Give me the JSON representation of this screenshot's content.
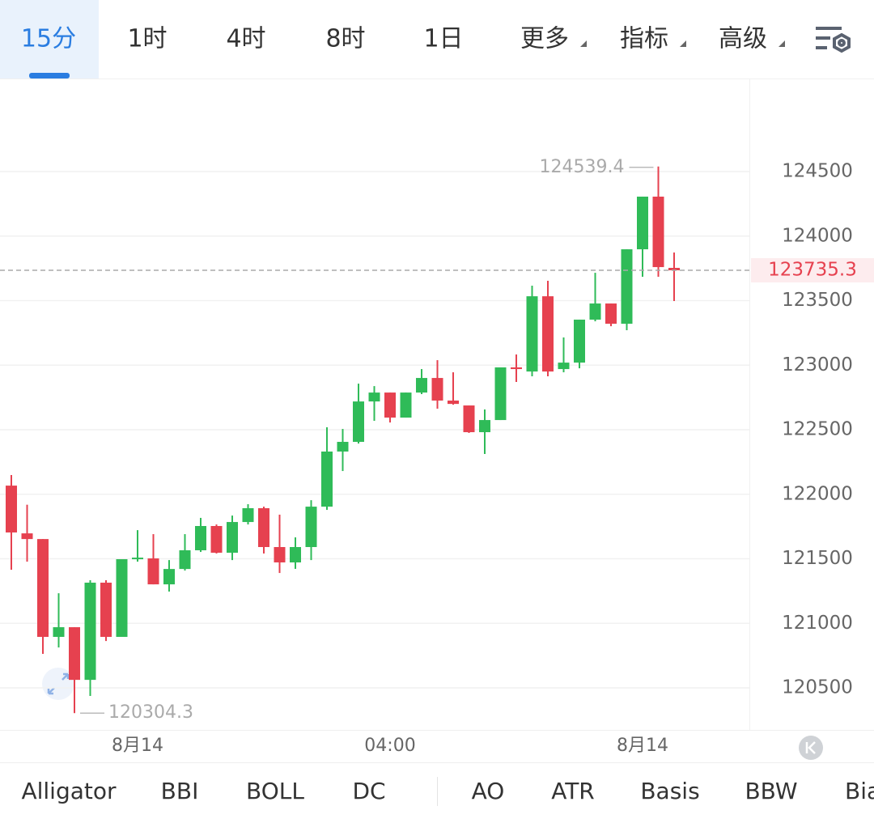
{
  "tabs": [
    "15分",
    "1时",
    "4时",
    "8时",
    "1日",
    "更多",
    "指标",
    "高级"
  ],
  "indicators": [
    "Alligator",
    "BBI",
    "BOLL",
    "DC",
    "AO",
    "ATR",
    "Basis",
    "BBW",
    "Bia"
  ],
  "chart_data": {
    "type": "candlestick",
    "categories": [
      null,
      null,
      null,
      null,
      null,
      null,
      null,
      null,
      "8月14",
      null,
      null,
      null,
      null,
      null,
      null,
      null,
      null,
      null,
      null,
      null,
      null,
      null,
      null,
      null,
      "04:00",
      null,
      null,
      null,
      null,
      null,
      null,
      null,
      null,
      null,
      null,
      null,
      null,
      null,
      null,
      null,
      "8月14",
      null,
      null
    ],
    "open": [
      122067,
      121697,
      121653,
      120895,
      120970,
      120562,
      121315,
      120895,
      121497,
      121503,
      121302,
      121421,
      121566,
      121754,
      121547,
      121785,
      121892,
      121591,
      121472,
      121591,
      121904,
      122331,
      122406,
      122719,
      122788,
      122594,
      122788,
      122901,
      122726,
      122688,
      122481,
      122575,
      122983,
      122951,
      123534,
      122970,
      123020,
      123353,
      123478,
      123321,
      123898,
      124306,
      123754
    ],
    "high": [
      122149,
      121919,
      121653,
      121233,
      120970,
      121334,
      121334,
      121497,
      121722,
      121691,
      121490,
      121691,
      121817,
      121766,
      121835,
      121923,
      121904,
      121842,
      121666,
      121954,
      122519,
      122506,
      122857,
      122838,
      122788,
      122788,
      122970,
      123039,
      122945,
      122688,
      122657,
      122983,
      123083,
      123616,
      123654,
      123215,
      123353,
      123716,
      123478,
      123898,
      124306,
      124539.4,
      123873
    ],
    "low": [
      121415,
      121478,
      120763,
      120813,
      120304.3,
      120437,
      120863,
      120895,
      121478,
      121302,
      121246,
      121409,
      121553,
      121541,
      121490,
      121766,
      121541,
      121390,
      121422,
      121490,
      121879,
      122180,
      122393,
      122569,
      122556,
      122594,
      122776,
      122663,
      122694,
      122475,
      122312,
      122575,
      122870,
      122914,
      122914,
      122945,
      122976,
      123340,
      123302,
      123271,
      123685,
      123685,
      123497
    ],
    "close": [
      121704,
      121653,
      120895,
      120970,
      120562,
      121315,
      120895,
      121497,
      121509,
      121302,
      121421,
      121566,
      121754,
      121547,
      121785,
      121892,
      121591,
      121472,
      121591,
      121904,
      122331,
      122406,
      122719,
      122788,
      122594,
      122788,
      122901,
      122726,
      122700,
      122481,
      122575,
      122983,
      122970,
      123534,
      122951,
      123020,
      123353,
      123478,
      123321,
      123898,
      124306,
      123760,
      123735.3
    ],
    "up_color": "#2fbb58",
    "down_color": "#e6414f",
    "ylim": [
      120174,
      125215
    ],
    "yticks": [
      120500,
      121000,
      121500,
      122000,
      122500,
      123000,
      123500,
      124000,
      124500
    ],
    "grid": true
  }
}
